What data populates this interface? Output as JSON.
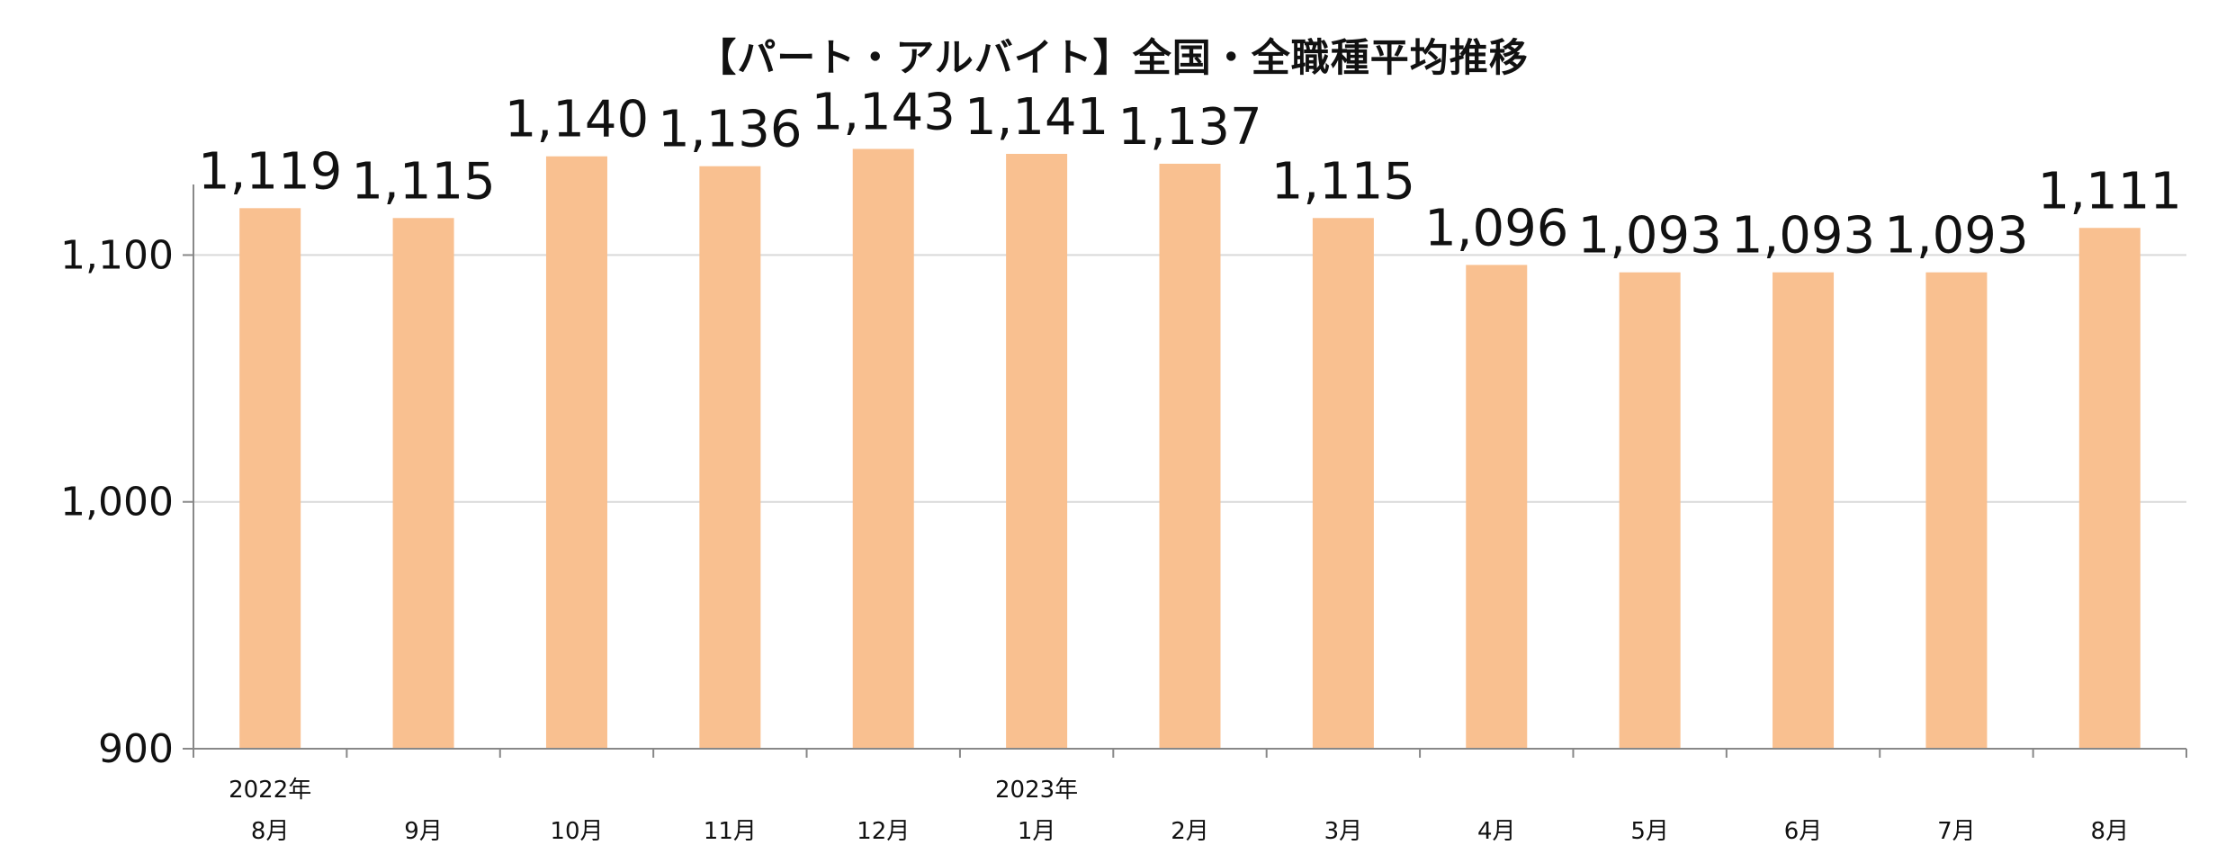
{
  "chart_data": {
    "type": "bar",
    "title": "【パート・アルバイト】全国・全職種平均推移",
    "year_labels": [
      {
        "index": 0,
        "label": "2022年"
      },
      {
        "index": 5,
        "label": "2023年"
      }
    ],
    "categories": [
      "8月",
      "9月",
      "10月",
      "11月",
      "12月",
      "1月",
      "2月",
      "3月",
      "4月",
      "5月",
      "6月",
      "7月",
      "8月"
    ],
    "values": [
      1119,
      1115,
      1140,
      1136,
      1143,
      1141,
      1137,
      1115,
      1096,
      1093,
      1093,
      1093,
      1111
    ],
    "data_labels": [
      "1,119",
      "1,115",
      "1,140",
      "1,136",
      "1,143",
      "1,141",
      "1,137",
      "1,115",
      "1,096",
      "1,093",
      "1,093",
      "1,093",
      "1,111"
    ],
    "ylim": [
      900,
      1145
    ],
    "yticks": [
      900,
      1000,
      1100
    ],
    "ytick_labels": [
      "900",
      "1,000",
      "1,100"
    ],
    "grid": true,
    "xlabel": "",
    "ylabel": "",
    "bar_color": "#f9c090",
    "grid_color": "#d9d9d9",
    "axis_color": "#888888"
  }
}
